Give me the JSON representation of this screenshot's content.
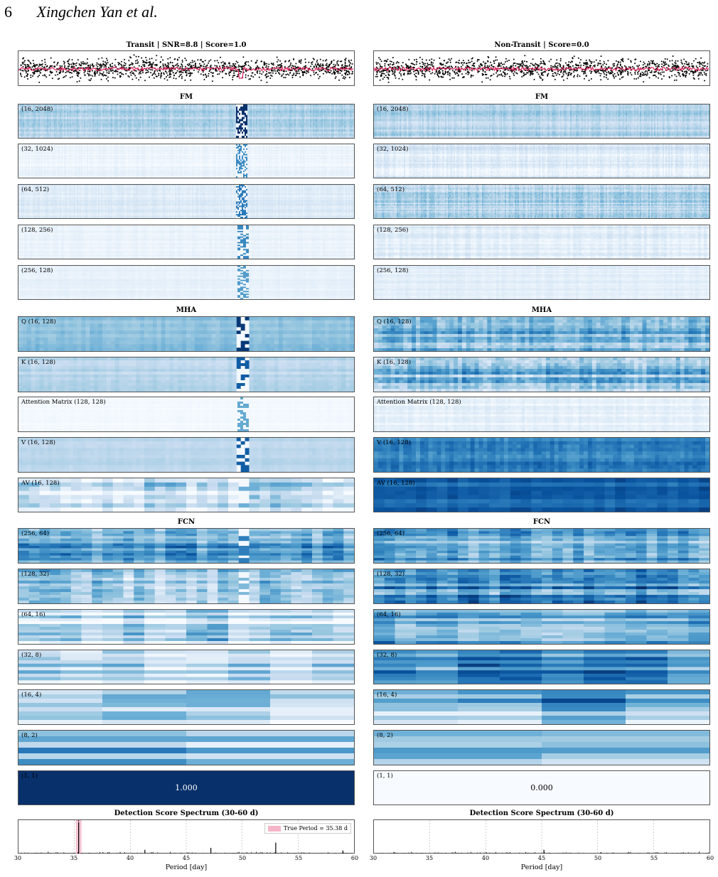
{
  "header": {
    "page_number": "6",
    "authors": "Xingchen Yan et al."
  },
  "left": {
    "title": "Transit | SNR=8.8 | Score=1.0",
    "fm_title": "FM",
    "fm": [
      "(16, 2048)",
      "(32, 1024)",
      "(64, 512)",
      "(128, 256)",
      "(256, 128)"
    ],
    "mha_title": "MHA",
    "mha": [
      "Q (16, 128)",
      "K (16, 128)",
      "Attention Matrix (128, 128)",
      "V (16, 128)",
      "AV (16, 128)"
    ],
    "fcn_title": "FCN",
    "fcn": [
      "(256, 64)",
      "(128, 32)",
      "(64, 16)",
      "(32, 8)",
      "(16, 4)",
      "(8, 2)",
      "(1, 1)"
    ],
    "final_value": "1.000",
    "spectrum_title": "Detection Score Spectrum (30-60 d)",
    "legend": "True Period = 35.38 d",
    "xlabel": "Period [day]"
  },
  "right": {
    "title": "Non-Transit | Score=0.0",
    "fm_title": "FM",
    "fm": [
      "(16, 2048)",
      "(32, 1024)",
      "(64, 512)",
      "(128, 256)",
      "(256, 128)"
    ],
    "mha_title": "MHA",
    "mha": [
      "Q (16, 128)",
      "K (16, 128)",
      "Attention Matrix (128, 128)",
      "V (16, 128)",
      "AV (16, 128)"
    ],
    "fcn_title": "FCN",
    "fcn": [
      "(256, 64)",
      "(128, 32)",
      "(64, 16)",
      "(32, 8)",
      "(16, 4)",
      "(8, 2)",
      "(1, 1)"
    ],
    "final_value": "0.000",
    "spectrum_title": "Detection Score Spectrum (30-60 d)",
    "xlabel": "Period [day]"
  },
  "colors": {
    "light": "#f7fbff",
    "mid": "#6baed6",
    "dark": "#08306b",
    "transit": "#e0245e",
    "band": "#f4b6c8"
  },
  "chart_data": [
    {
      "type": "line",
      "title": "Detection Score Spectrum (30-60 d)",
      "xlabel": "Period [day]",
      "xlim": [
        30,
        60
      ],
      "xticks": [
        "30",
        "35",
        "40",
        "45",
        "50",
        "55",
        "60"
      ],
      "series": [
        {
          "name": "True Period = 35.38 d",
          "x": [
            35.38
          ]
        }
      ],
      "peaks": [
        {
          "x": 35.38,
          "y": 1.0
        },
        {
          "x": 53.0,
          "y": 0.35
        },
        {
          "x": 47.2,
          "y": 0.18
        },
        {
          "x": 41.3,
          "y": 0.12
        },
        {
          "x": 59.0,
          "y": 0.1
        }
      ],
      "grid": true,
      "legend": "top-right"
    },
    {
      "type": "line",
      "title": "Detection Score Spectrum (30-60 d)",
      "xlabel": "Period [day]",
      "xlim": [
        30,
        60
      ],
      "xticks": [
        "30",
        "35",
        "40",
        "45",
        "50",
        "55",
        "60"
      ],
      "peaks": [
        {
          "x": 45.2,
          "y": 0.12
        },
        {
          "x": 31.8,
          "y": 0.05
        },
        {
          "x": 50.3,
          "y": 0.04
        }
      ],
      "grid": true
    }
  ]
}
